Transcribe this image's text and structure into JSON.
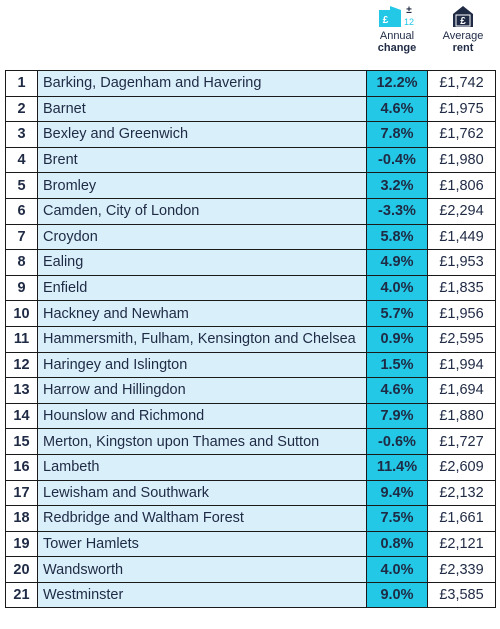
{
  "header": {
    "change_label": "Annual",
    "change_label_bold": "change",
    "rent_label": "Average",
    "rent_label_bold": "rent",
    "change_icon": {
      "name": "pound-building-plus-minus-12-icon",
      "glyph_plusminus": "±",
      "glyph_12": "12",
      "glyph_pound": "£"
    },
    "rent_icon": {
      "name": "pound-house-icon",
      "glyph_pound": "£"
    }
  },
  "colors": {
    "change_icon": "#22c8e5",
    "rent_icon": "#1f2a44",
    "area_bg": "#d9f0fb",
    "change_bg": "#22c8e5",
    "text": "#1f2a44"
  },
  "rows": [
    {
      "rank": "1",
      "area": "Barking, Dagenham and Havering",
      "change": "12.2%",
      "rent": "£1,742"
    },
    {
      "rank": "2",
      "area": "Barnet",
      "change": "4.6%",
      "rent": "£1,975"
    },
    {
      "rank": "3",
      "area": "Bexley and Greenwich",
      "change": "7.8%",
      "rent": "£1,762"
    },
    {
      "rank": "4",
      "area": "Brent",
      "change": "-0.4%",
      "rent": "£1,980"
    },
    {
      "rank": "5",
      "area": "Bromley",
      "change": "3.2%",
      "rent": "£1,806"
    },
    {
      "rank": "6",
      "area": "Camden, City of London",
      "change": "-3.3%",
      "rent": "£2,294"
    },
    {
      "rank": "7",
      "area": "Croydon",
      "change": "5.8%",
      "rent": "£1,449"
    },
    {
      "rank": "8",
      "area": "Ealing",
      "change": "4.9%",
      "rent": "£1,953"
    },
    {
      "rank": "9",
      "area": "Enfield",
      "change": "4.0%",
      "rent": "£1,835"
    },
    {
      "rank": "10",
      "area": "Hackney and Newham",
      "change": "5.7%",
      "rent": "£1,956"
    },
    {
      "rank": "11",
      "area": "Hammersmith, Fulham, Kensington and Chelsea",
      "change": "0.9%",
      "rent": "£2,595"
    },
    {
      "rank": "12",
      "area": "Haringey and Islington",
      "change": "1.5%",
      "rent": "£1,994"
    },
    {
      "rank": "13",
      "area": "Harrow and Hillingdon",
      "change": "4.6%",
      "rent": "£1,694"
    },
    {
      "rank": "14",
      "area": "Hounslow and Richmond",
      "change": "7.9%",
      "rent": "£1,880"
    },
    {
      "rank": "15",
      "area": "Merton, Kingston upon Thames and Sutton",
      "change": "-0.6%",
      "rent": "£1,727"
    },
    {
      "rank": "16",
      "area": "Lambeth",
      "change": "11.4%",
      "rent": "£2,609"
    },
    {
      "rank": "17",
      "area": "Lewisham and Southwark",
      "change": "9.4%",
      "rent": "£2,132"
    },
    {
      "rank": "18",
      "area": "Redbridge and Waltham Forest",
      "change": "7.5%",
      "rent": "£1,661"
    },
    {
      "rank": "19",
      "area": "Tower Hamlets",
      "change": "0.8%",
      "rent": "£2,121"
    },
    {
      "rank": "20",
      "area": "Wandsworth",
      "change": "4.0%",
      "rent": "£2,339"
    },
    {
      "rank": "21",
      "area": "Westminster",
      "change": "9.0%",
      "rent": "£3,585"
    }
  ]
}
